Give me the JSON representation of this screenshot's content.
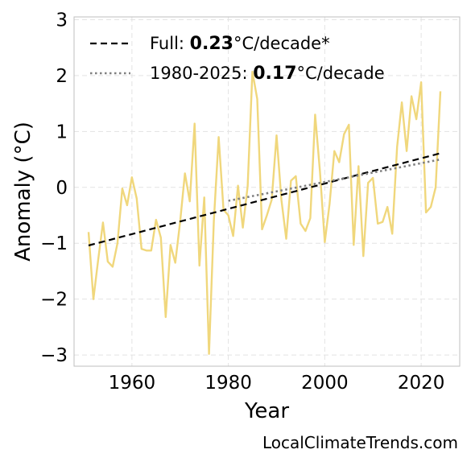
{
  "chart_data": {
    "type": "line",
    "xlabel": "Year",
    "ylabel": "Anomaly (°C)",
    "xlim": [
      1948,
      2028
    ],
    "ylim": [
      -3.2,
      3.05
    ],
    "xticks": [
      1960,
      1980,
      2000,
      2020
    ],
    "yticks": [
      -3,
      -2,
      -1,
      0,
      1,
      2,
      3
    ],
    "ytick_labels": [
      "−3",
      "−2",
      "−1",
      "0",
      "1",
      "2",
      "3"
    ],
    "grid": true,
    "legend_position": "top-left",
    "series": [
      {
        "color": "#f0d77c",
        "style": "solid",
        "x": [
          1951,
          1952,
          1953,
          1954,
          1955,
          1956,
          1957,
          1958,
          1959,
          1960,
          1961,
          1962,
          1963,
          1964,
          1965,
          1966,
          1967,
          1968,
          1969,
          1970,
          1971,
          1972,
          1973,
          1974,
          1975,
          1976,
          1977,
          1978,
          1979,
          1980,
          1981,
          1982,
          1983,
          1984,
          1985,
          1986,
          1987,
          1988,
          1989,
          1990,
          1991,
          1992,
          1993,
          1994,
          1995,
          1996,
          1997,
          1998,
          1999,
          2000,
          2001,
          2002,
          2003,
          2004,
          2005,
          2006,
          2007,
          2008,
          2009,
          2010,
          2011,
          2012,
          2013,
          2014,
          2015,
          2016,
          2017,
          2018,
          2019,
          2020,
          2021,
          2022,
          2023,
          2024
        ],
        "y": [
          -0.8,
          -2.0,
          -1.3,
          -0.63,
          -1.33,
          -1.42,
          -1.0,
          -0.02,
          -0.32,
          0.18,
          -0.2,
          -1.1,
          -1.13,
          -1.13,
          -0.58,
          -0.9,
          -2.32,
          -1.03,
          -1.35,
          -0.62,
          0.25,
          -0.25,
          1.14,
          -1.4,
          -0.18,
          -2.98,
          -0.6,
          0.9,
          -0.4,
          -0.5,
          -0.87,
          0.03,
          -0.72,
          0.02,
          2.07,
          1.58,
          -0.75,
          -0.5,
          -0.22,
          0.93,
          -0.22,
          -0.92,
          0.12,
          0.2,
          -0.65,
          -0.78,
          -0.55,
          1.3,
          0.28,
          -0.98,
          -0.3,
          0.65,
          0.45,
          0.95,
          1.12,
          -1.03,
          0.38,
          -1.23,
          0.08,
          0.17,
          -0.65,
          -0.62,
          -0.35,
          -0.83,
          0.72,
          1.52,
          0.65,
          1.63,
          1.22,
          1.88,
          -0.45,
          -0.35,
          0.0,
          1.72
        ]
      },
      {
        "name": "Full: 0.23°C/decade*",
        "color": "#000000",
        "style": "dashed",
        "x": [
          1951,
          2024
        ],
        "y": [
          -1.04,
          0.61
        ]
      },
      {
        "name": "1980-2025: 0.17°C/decade",
        "color": "#808080",
        "style": "dotted",
        "x": [
          1980,
          2024
        ],
        "y": [
          -0.24,
          0.5
        ]
      }
    ],
    "legend": [
      {
        "prefix": "Full: ",
        "value": "0.23",
        "suffix": "°C/decade*"
      },
      {
        "prefix": "1980-2025: ",
        "value": "0.17",
        "suffix": "°C/decade"
      }
    ]
  },
  "watermark": "LocalClimateTrends.com"
}
